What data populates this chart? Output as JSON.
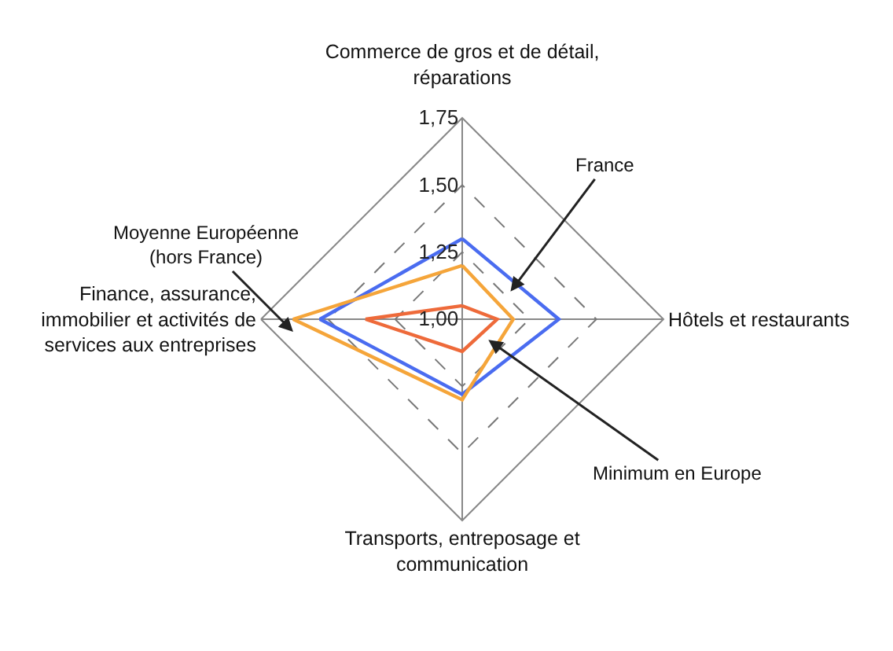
{
  "chart_data": {
    "type": "radar",
    "categories": [
      "Commerce de gros et de détail, réparations",
      "Hôtels et restaurants",
      "Transports, entreposage et communication",
      "Finance, assurance, immobilier et activités de services aux entreprises"
    ],
    "series": [
      {
        "name": "France",
        "color": "#4a6cf0",
        "values": [
          1.3,
          1.36,
          1.28,
          1.53
        ]
      },
      {
        "name": "Moyenne Européenne (hors France)",
        "color": "#f5a53a",
        "values": [
          1.2,
          1.19,
          1.3,
          1.63
        ]
      },
      {
        "name": "Minimum en Europe",
        "color": "#ee6a3a",
        "values": [
          1.05,
          1.13,
          1.12,
          1.36
        ]
      }
    ],
    "ylim": [
      1.0,
      1.75
    ],
    "yticks": [
      {
        "value": 1.0,
        "label": "1,00"
      },
      {
        "value": 1.25,
        "label": "1,25"
      },
      {
        "value": 1.5,
        "label": "1,50"
      },
      {
        "value": 1.75,
        "label": "1,75"
      }
    ],
    "grid": true,
    "legend": false,
    "line_style": "solid",
    "marker": "none"
  }
}
